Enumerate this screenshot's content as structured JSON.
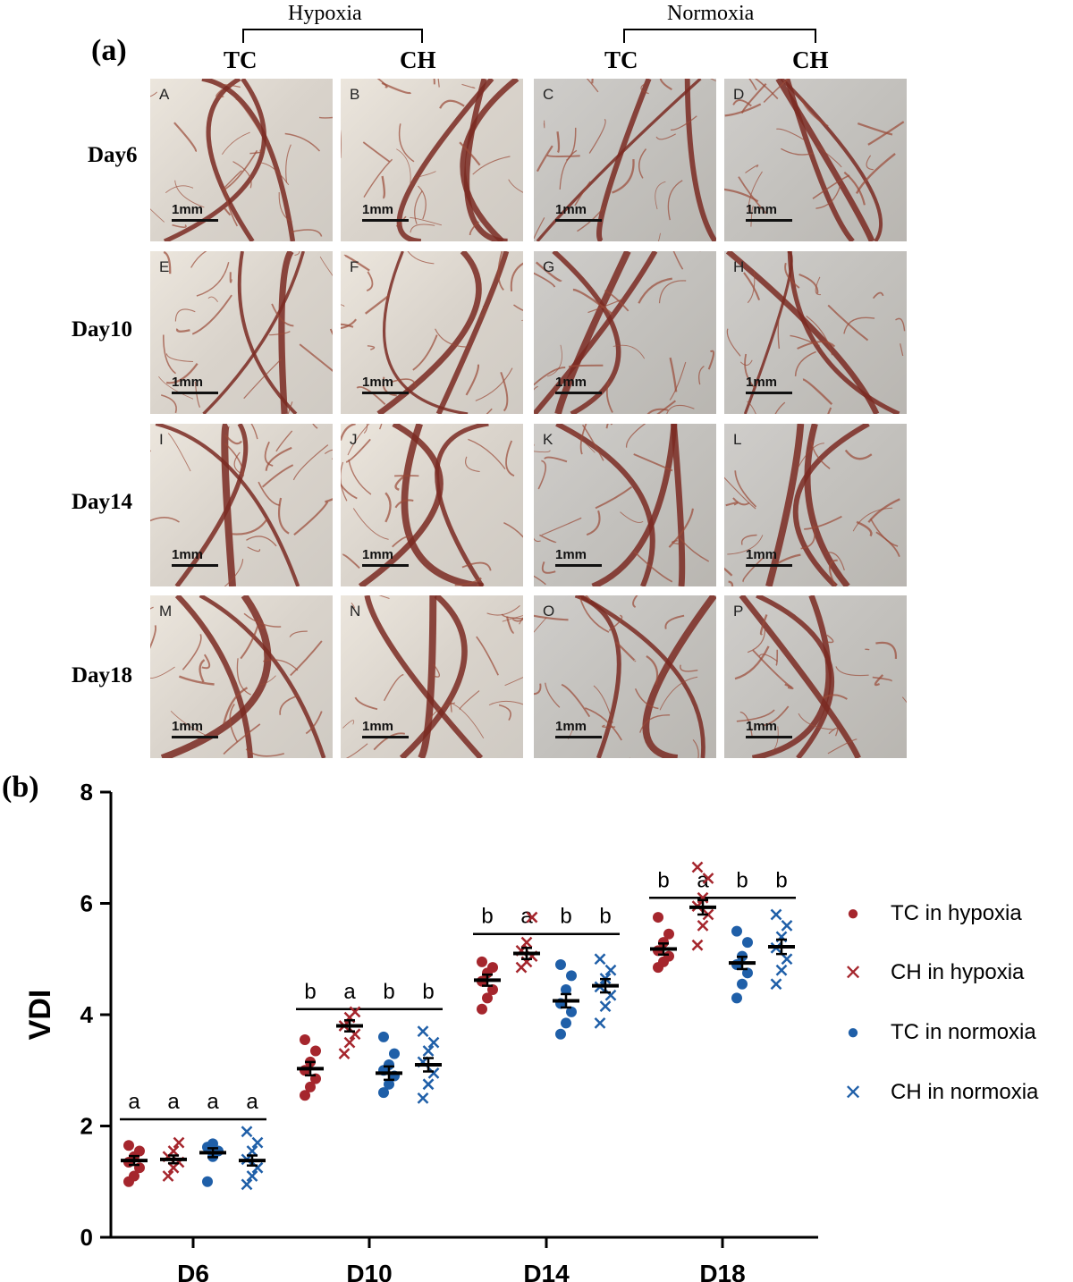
{
  "panel_a": {
    "label": "(a)",
    "conditions": [
      "Hypoxia",
      "Normoxia"
    ],
    "groups": [
      "TC",
      "CH",
      "TC",
      "CH"
    ],
    "days": [
      "Day6",
      "Day10",
      "Day14",
      "Day18"
    ],
    "scale_label": "1mm",
    "photo_letters": [
      "A",
      "B",
      "C",
      "D",
      "E",
      "F",
      "G",
      "H",
      "I",
      "J",
      "K",
      "L",
      "M",
      "N",
      "O",
      "P"
    ]
  },
  "panel_b": {
    "label": "(b)"
  },
  "chart_data": {
    "type": "scatter",
    "ylabel": "VDI",
    "xlabel": "",
    "ylim": [
      0,
      8
    ],
    "yticks": [
      0,
      2,
      4,
      6,
      8
    ],
    "categories": [
      "D6",
      "D10",
      "D14",
      "D18"
    ],
    "legend_position": "right",
    "series": [
      {
        "name": "TC in hypoxia",
        "marker": "circle",
        "color": "#a5262d",
        "means": [
          1.38,
          3.03,
          4.62,
          5.18
        ],
        "sem": [
          0.08,
          0.12,
          0.1,
          0.1
        ],
        "points": [
          [
            1.0,
            1.1,
            1.25,
            1.35,
            1.45,
            1.55,
            1.65
          ],
          [
            2.55,
            2.7,
            2.85,
            3.0,
            3.15,
            3.35,
            3.55
          ],
          [
            4.1,
            4.3,
            4.45,
            4.6,
            4.75,
            4.85,
            4.95
          ],
          [
            4.85,
            4.95,
            5.05,
            5.15,
            5.3,
            5.45,
            5.75
          ]
        ]
      },
      {
        "name": "CH in hypoxia",
        "marker": "cross",
        "color": "#a5262d",
        "means": [
          1.4,
          3.8,
          5.1,
          5.93
        ],
        "sem": [
          0.07,
          0.1,
          0.1,
          0.13
        ],
        "points": [
          [
            1.1,
            1.25,
            1.35,
            1.45,
            1.55,
            1.7
          ],
          [
            3.3,
            3.5,
            3.65,
            3.8,
            3.95,
            4.05
          ],
          [
            4.85,
            4.95,
            5.05,
            5.15,
            5.3,
            5.75
          ],
          [
            5.25,
            5.6,
            5.8,
            5.95,
            6.1,
            6.45,
            6.65
          ]
        ]
      },
      {
        "name": "TC in normoxia",
        "marker": "circle",
        "color": "#1f5fa8",
        "means": [
          1.52,
          2.95,
          4.25,
          4.93
        ],
        "sem": [
          0.08,
          0.12,
          0.12,
          0.11
        ],
        "points": [
          [
            1.0,
            1.45,
            1.55,
            1.62,
            1.68
          ],
          [
            2.6,
            2.75,
            2.9,
            3.0,
            3.1,
            3.3,
            3.6
          ],
          [
            3.65,
            3.85,
            4.05,
            4.2,
            4.45,
            4.7,
            4.9
          ],
          [
            4.3,
            4.55,
            4.75,
            4.9,
            5.05,
            5.3,
            5.5
          ]
        ]
      },
      {
        "name": "CH in normoxia",
        "marker": "cross",
        "color": "#1f5fa8",
        "means": [
          1.38,
          3.1,
          4.52,
          5.22
        ],
        "sem": [
          0.09,
          0.12,
          0.12,
          0.13
        ],
        "points": [
          [
            0.95,
            1.1,
            1.25,
            1.4,
            1.55,
            1.7,
            1.9
          ],
          [
            2.5,
            2.75,
            2.95,
            3.15,
            3.35,
            3.5,
            3.7
          ],
          [
            3.85,
            4.15,
            4.35,
            4.5,
            4.65,
            4.8,
            5.0
          ],
          [
            4.55,
            4.8,
            5.0,
            5.2,
            5.4,
            5.6,
            5.8
          ]
        ]
      }
    ],
    "significance": [
      {
        "category": "D6",
        "letters": [
          "a",
          "a",
          "a",
          "a"
        ],
        "level": 2.12
      },
      {
        "category": "D10",
        "letters": [
          "b",
          "a",
          "b",
          "b"
        ],
        "level": 4.1
      },
      {
        "category": "D14",
        "letters": [
          "b",
          "a",
          "b",
          "b"
        ],
        "level": 5.45
      },
      {
        "category": "D18",
        "letters": [
          "b",
          "a",
          "b",
          "b"
        ],
        "level": 6.1
      }
    ]
  }
}
